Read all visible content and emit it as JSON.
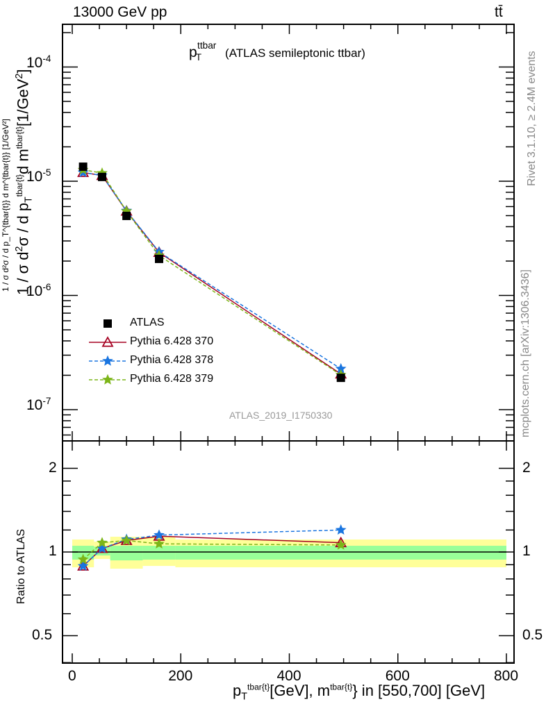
{
  "header": {
    "energy": "13000 GeV pp",
    "process": "tt̄"
  },
  "side": {
    "rivet": "Rivet 3.1.10, ≥ 2.4M events",
    "mcplots": "mcplots.cern.ch [arXiv:1306.3436]"
  },
  "chart_data": {
    "type": "line",
    "title": "p_T^ttbar (ATLAS semileptonic ttbar)",
    "title_main": "p",
    "title_sub": "T",
    "title_sup": "ttbar",
    "title_rest": " (ATLAS semileptonic ttbar)",
    "analysis": "ATLAS_2019_I1750330",
    "ylabel": "1 / σ d²σ / d p_T^{tbar{t}} d m^{tbar{t}} [1/GeV²]",
    "ylabel_parts": {
      "a": "1 / σ d",
      "b": "2",
      "c": "σ / d p",
      "d": "T",
      "e": "tbar{t}",
      "f": "d m",
      "g": "tbar{t}",
      "h": "[1/GeV",
      "i": "2",
      "j": "]"
    },
    "xlabel": "p_T^{tbar{t}} [GeV], m^{tbar{t}} in [550,700] [GeV]",
    "xlabel_parts": {
      "a": "p",
      "b": "T",
      "c": "tbar{t}",
      "d": "[GeV], m",
      "e": "tbar{t}",
      "f": "} in [550,700] [GeV]"
    },
    "ratio_ylabel": "Ratio to ATLAS",
    "xlim": [
      -20,
      810
    ],
    "ylim": [
      5.4e-08,
      0.00024
    ],
    "ratio_ylim": [
      0.398,
      2.51
    ],
    "yscale": "log",
    "xticks": [
      "0",
      "200",
      "400",
      "600",
      "800"
    ],
    "yticks": [
      {
        "base": "10",
        "exp": "-4",
        "v": 0.0001
      },
      {
        "base": "10",
        "exp": "-5",
        "v": 1e-05
      },
      {
        "base": "10",
        "exp": "-6",
        "v": 1e-06
      },
      {
        "base": "10",
        "exp": "-7",
        "v": 1e-07
      }
    ],
    "ratio_yticks": [
      {
        "label": "2",
        "v": 2
      },
      {
        "label": "1",
        "v": 1
      },
      {
        "label": "0.5",
        "v": 0.5
      }
    ],
    "bin_edges": [
      0,
      40,
      70,
      130,
      190,
      800
    ],
    "x": [
      20,
      55,
      100,
      160,
      495
    ],
    "data": {
      "name": "ATLAS",
      "values": [
        1.34e-05,
        1.09e-05,
        4.97e-06,
        2.09e-06,
        1.9e-07
      ]
    },
    "band_stat": {
      "up": [
        1.053,
        1.045,
        1.053,
        1.053,
        1.053
      ],
      "down": [
        0.939,
        0.972,
        0.933,
        0.939,
        0.939
      ]
    },
    "band_total": {
      "up": [
        1.109,
        1.09,
        1.135,
        1.135,
        1.109
      ],
      "down": [
        0.881,
        0.944,
        0.871,
        0.891,
        0.881
      ]
    },
    "series": [
      {
        "name": "Pythia 6.428 370",
        "ratio": [
          0.89,
          1.03,
          1.1,
          1.14,
          1.08
        ],
        "color": "#a50021",
        "style": "solid",
        "marker": "triangle"
      },
      {
        "name": "Pythia 6.428 378",
        "ratio": [
          0.89,
          1.03,
          1.11,
          1.15,
          1.2
        ],
        "color": "#1a75e0",
        "style": "dashed",
        "marker": "star"
      },
      {
        "name": "Pythia 6.428 379",
        "ratio": [
          0.94,
          1.08,
          1.1,
          1.07,
          1.06
        ],
        "color": "#7cb518",
        "style": "dashed",
        "marker": "star"
      }
    ],
    "legend_position": "center-left"
  },
  "colors": {
    "stat": "#99ff99",
    "total": "#ffff99"
  }
}
